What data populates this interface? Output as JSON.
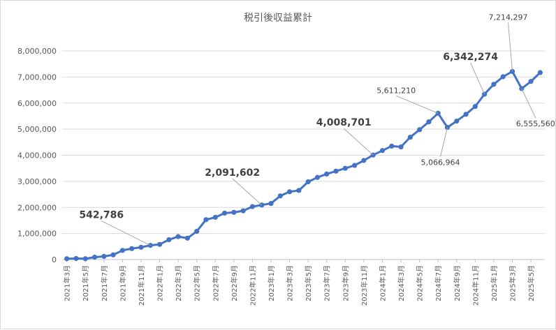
{
  "chart_data": {
    "type": "line",
    "title": "税引後収益累計",
    "ylim": [
      0,
      8000000
    ],
    "yticks": [
      0,
      1000000,
      2000000,
      3000000,
      4000000,
      5000000,
      6000000,
      7000000,
      8000000
    ],
    "ytick_labels": [
      "0",
      "1,000,000",
      "2,000,000",
      "3,000,000",
      "4,000,000",
      "5,000,000",
      "6,000,000",
      "7,000,000",
      "8,000,000"
    ],
    "grid": true,
    "legend": "none",
    "color": "#4472C4",
    "x_tick_labels": [
      "2021年3月",
      "2021年5月",
      "2021年7月",
      "2021年9月",
      "2021年11月",
      "2022年1月",
      "2022年3月",
      "2022年5月",
      "2022年7月",
      "2022年9月",
      "2022年11月",
      "2023年1月",
      "2023年3月",
      "2023年5月",
      "2023年7月",
      "2023年9月",
      "2023年11月",
      "2024年1月",
      "2024年3月",
      "2024年5月",
      "2024年7月",
      "2024年9月",
      "2024年11月",
      "2025年1月",
      "2025年3月",
      "2025年5月"
    ],
    "x": [
      "2021年3月",
      "2021年4月",
      "2021年5月",
      "2021年6月",
      "2021年7月",
      "2021年8月",
      "2021年9月",
      "2021年10月",
      "2021年11月",
      "2021年12月",
      "2022年1月",
      "2022年2月",
      "2022年3月",
      "2022年4月",
      "2022年5月",
      "2022年6月",
      "2022年7月",
      "2022年8月",
      "2022年9月",
      "2022年10月",
      "2022年11月",
      "2022年12月",
      "2023年1月",
      "2023年2月",
      "2023年3月",
      "2023年4月",
      "2023年5月",
      "2023年6月",
      "2023年7月",
      "2023年8月",
      "2023年9月",
      "2023年10月",
      "2023年11月",
      "2023年12月",
      "2024年1月",
      "2024年2月",
      "2024年3月",
      "2024年4月",
      "2024年5月",
      "2024年6月",
      "2024年7月",
      "2024年8月",
      "2024年9月",
      "2024年10月",
      "2024年11月",
      "2024年12月",
      "2025年1月",
      "2025年2月",
      "2025年3月",
      "2025年4月",
      "2025年5月",
      "2025年6月"
    ],
    "values": [
      30000,
      40000,
      30000,
      90000,
      120000,
      180000,
      350000,
      420000,
      470000,
      542786,
      580000,
      760000,
      880000,
      820000,
      1080000,
      1530000,
      1620000,
      1780000,
      1810000,
      1870000,
      2030000,
      2091602,
      2150000,
      2440000,
      2600000,
      2650000,
      2980000,
      3150000,
      3280000,
      3390000,
      3500000,
      3610000,
      3800000,
      4008701,
      4180000,
      4350000,
      4320000,
      4690000,
      4980000,
      5280000,
      5611210,
      5066964,
      5310000,
      5570000,
      5870000,
      6342274,
      6720000,
      7010000,
      7214297,
      6555560,
      6830000,
      7170000
    ],
    "annotations": [
      {
        "index": 9,
        "text": "542,786",
        "style": "big",
        "dx": -70,
        "dy": -35
      },
      {
        "index": 21,
        "text": "2,091,602",
        "style": "big",
        "dx": -42,
        "dy": -38
      },
      {
        "index": 33,
        "text": "4,008,701",
        "style": "big",
        "dx": -42,
        "dy": -38
      },
      {
        "index": 45,
        "text": "6,342,274",
        "style": "big",
        "dx": -20,
        "dy": -45
      },
      {
        "index": 40,
        "text": "5,611,210",
        "style": "small",
        "dx": -60,
        "dy": -25
      },
      {
        "index": 41,
        "text": "5,066,964",
        "style": "small",
        "dx": -10,
        "dy": 42
      },
      {
        "index": 48,
        "text": "7,214,297",
        "style": "small",
        "dx": -6,
        "dy": -70
      },
      {
        "index": 49,
        "text": "6,555,560",
        "style": "small",
        "dx": 20,
        "dy": 42
      }
    ]
  }
}
